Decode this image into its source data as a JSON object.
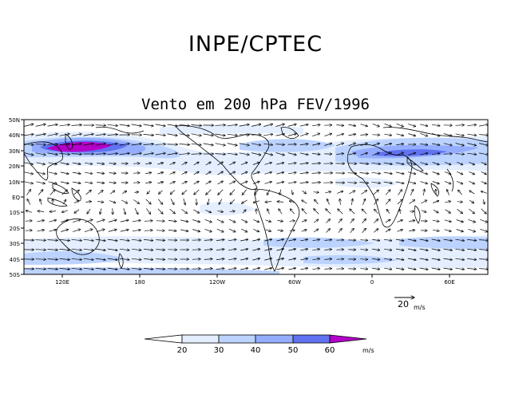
{
  "header": {
    "organization": "INPE/CPTEC"
  },
  "map": {
    "title": "Vento em 200 hPa FEV/1996",
    "lat_labels": [
      "50N",
      "40N",
      "30N",
      "20N",
      "10N",
      "EQ",
      "10S",
      "20S",
      "30S",
      "40S",
      "50S"
    ],
    "lon_labels": [
      "120E",
      "180",
      "120W",
      "60W",
      "0",
      "60E"
    ],
    "shading_colors": [
      "#ffffff",
      "#e4eeff",
      "#bcd3ff",
      "#95adff",
      "#6072f0",
      "#b400c8"
    ]
  },
  "reference_vector": {
    "value": "20",
    "unit": "m/s"
  },
  "colorbar": {
    "levels": [
      "20",
      "30",
      "40",
      "50",
      "60"
    ],
    "unit": "m/s",
    "colors": [
      "#ffffff",
      "#e4eeff",
      "#bcd3ff",
      "#95adff",
      "#6072f0",
      "#b400c8"
    ]
  }
}
